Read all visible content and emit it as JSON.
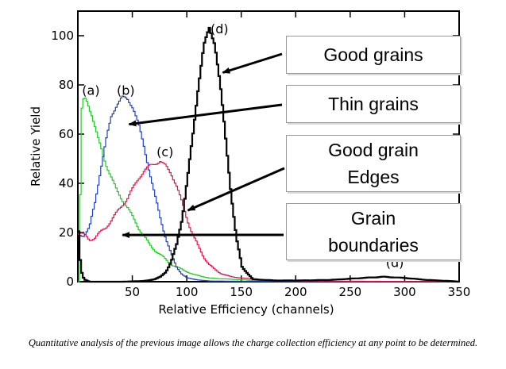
{
  "chart_data": {
    "type": "line",
    "xlabel": "Relative Efficiency (channels)",
    "ylabel": "Relative Yield",
    "xlim": [
      0,
      350
    ],
    "ylim": [
      0,
      110
    ],
    "xticks": [
      50,
      100,
      150,
      200,
      250,
      300,
      350
    ],
    "yticks": [
      0,
      20,
      40,
      60,
      80,
      100
    ],
    "grid": false,
    "series": [
      {
        "name": "(a)",
        "color": "#22cc22",
        "x": [
          0,
          3,
          5,
          8,
          12,
          18,
          25,
          35,
          45,
          55,
          65,
          75,
          85,
          95,
          105,
          120,
          140,
          160,
          200,
          250,
          300,
          350
        ],
        "y": [
          0,
          70,
          75,
          73,
          68,
          58,
          48,
          37,
          30,
          22,
          15,
          11,
          7,
          5,
          3,
          1.5,
          1,
          0.5,
          0.3,
          0,
          0,
          0
        ]
      },
      {
        "name": "(b)",
        "color": "#1f3fbf",
        "x": [
          0,
          5,
          10,
          15,
          20,
          25,
          30,
          35,
          40,
          45,
          50,
          55,
          60,
          65,
          70,
          75,
          80,
          85,
          90,
          95,
          100,
          110,
          120,
          140,
          160,
          200,
          250,
          350
        ],
        "y": [
          19,
          19,
          22,
          32,
          45,
          57,
          67,
          72,
          75,
          74,
          71,
          64,
          55,
          45,
          35,
          26,
          18,
          11,
          6,
          3,
          1.5,
          0.7,
          0.3,
          0.2,
          0.1,
          0,
          0,
          0
        ]
      },
      {
        "name": "(c)",
        "color": "#e0104a",
        "x": [
          0,
          5,
          10,
          15,
          20,
          25,
          30,
          35,
          40,
          45,
          50,
          55,
          60,
          65,
          70,
          75,
          80,
          85,
          90,
          95,
          100,
          105,
          110,
          115,
          120,
          125,
          130,
          140,
          150,
          160,
          180,
          200,
          250,
          350
        ],
        "y": [
          20,
          19,
          17,
          18,
          20,
          22,
          25,
          28,
          31,
          34,
          38,
          42,
          45,
          47,
          48,
          49,
          47,
          44,
          39,
          32,
          25,
          19,
          14,
          10,
          7,
          5,
          3.5,
          2,
          1.5,
          1,
          0.5,
          0.3,
          0.2,
          0
        ]
      },
      {
        "name": "(d)",
        "color": "#000000",
        "x": [
          0,
          2,
          5,
          10,
          20,
          40,
          60,
          70,
          75,
          80,
          85,
          90,
          95,
          100,
          105,
          110,
          115,
          120,
          125,
          130,
          135,
          140,
          145,
          150,
          160,
          180,
          200,
          230,
          260,
          280,
          300,
          320,
          340,
          350
        ],
        "y": [
          20,
          5,
          1,
          0,
          0,
          0,
          0.3,
          1,
          2,
          4,
          8,
          15,
          26,
          42,
          60,
          80,
          96,
          103,
          97,
          80,
          58,
          36,
          17,
          6,
          1,
          0.5,
          0.5,
          0.7,
          1.5,
          2,
          1.5,
          0.7,
          0.3,
          0
        ]
      }
    ],
    "annotations": [
      {
        "text": "(a)",
        "x": 12,
        "y": 76
      },
      {
        "text": "(b)",
        "x": 44,
        "y": 76
      },
      {
        "text": "(c)",
        "x": 80,
        "y": 51
      },
      {
        "text": "(d)",
        "x": 130,
        "y": 101
      },
      {
        "text": "(d)",
        "x": 291,
        "y": 6
      }
    ],
    "callouts": [
      {
        "text": "Good grains",
        "arrow_to": [
          133,
          85
        ]
      },
      {
        "text": "Thin grains",
        "arrow_to": [
          47,
          64
        ]
      },
      {
        "text": "Good grain\nEdges",
        "arrow_to": [
          101,
          29
        ]
      },
      {
        "text": "Grain\nboundaries",
        "arrow_to": [
          41,
          19
        ]
      }
    ]
  },
  "caption": "Quantitative analysis of the previous image allows the charge collection efficiency at any point to be determined."
}
